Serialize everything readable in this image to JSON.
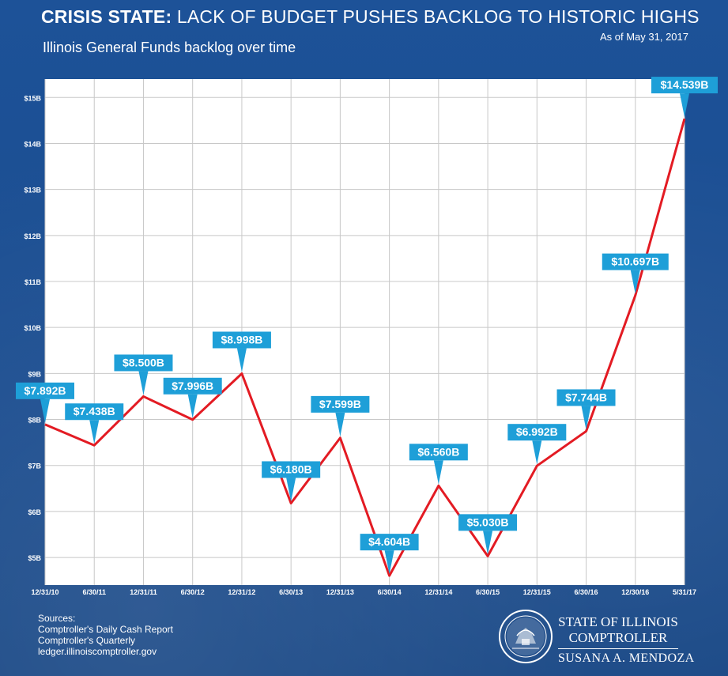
{
  "header": {
    "title_bold": "CRISIS STATE:",
    "title_rest": " LACK OF BUDGET PUSHES BACKLOG TO HISTORIC HIGHS",
    "as_of": "As of May 31, 2017",
    "subtitle": "Illinois General Funds backlog over time"
  },
  "chart_data": {
    "type": "line",
    "title": "CRISIS STATE: LACK OF BUDGET PUSHES BACKLOG TO HISTORIC HIGHS",
    "subtitle": "Illinois General Funds backlog over time",
    "x": [
      "12/31/10",
      "6/30/11",
      "12/31/11",
      "6/30/12",
      "12/31/12",
      "6/30/13",
      "12/31/13",
      "6/30/14",
      "12/31/14",
      "6/30/15",
      "12/31/15",
      "6/30/16",
      "12/30/16",
      "5/31/17"
    ],
    "series": [
      {
        "values": [
          7.892,
          7.438,
          8.5,
          7.996,
          8.998,
          6.18,
          7.599,
          4.604,
          6.56,
          5.03,
          6.992,
          7.744,
          10.697,
          14.539
        ],
        "labels": [
          "$7.892B",
          "$7.438B",
          "$8.500B",
          "$7.996B",
          "$8.998B",
          "$6.180B",
          "$7.599B",
          "$4.604B",
          "$6.560B",
          "$5.030B",
          "$6.992B",
          "$7.744B",
          "$10.697B",
          "$14.539B"
        ],
        "color": "#e31b23"
      }
    ],
    "y_ticks": [
      {
        "value": 5,
        "label": "$5B"
      },
      {
        "value": 6,
        "label": "$6B"
      },
      {
        "value": 7,
        "label": "$7B"
      },
      {
        "value": 8,
        "label": "$8B"
      },
      {
        "value": 9,
        "label": "$9B"
      },
      {
        "value": 10,
        "label": "$10B"
      },
      {
        "value": 11,
        "label": "$11B"
      },
      {
        "value": 12,
        "label": "$12B"
      },
      {
        "value": 13,
        "label": "$13B"
      },
      {
        "value": 14,
        "label": "$14B"
      },
      {
        "value": 15,
        "label": "$15B"
      }
    ],
    "ylim": [
      4.4,
      15.4
    ],
    "grid": true,
    "label_color": "#1e9fd8"
  },
  "sources": {
    "heading": "Sources:",
    "items": [
      "Comptroller's Daily Cash Report",
      "Comptroller's Quarterly",
      "ledger.illinoiscomptroller.gov"
    ]
  },
  "office": {
    "line1": "STATE OF ILLINOIS",
    "line2": "COMPTROLLER",
    "line3": "SUSANA A. MENDOZA"
  },
  "seal": {
    "icon": "state-seal-icon"
  }
}
